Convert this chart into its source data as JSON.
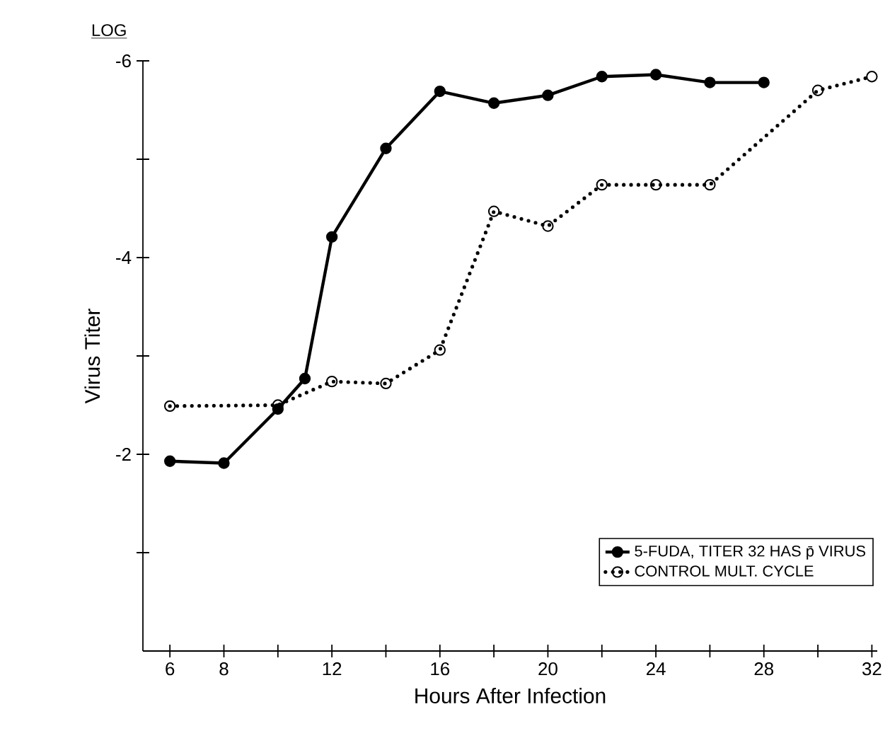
{
  "chart_data": {
    "type": "line",
    "xlabel": "Hours After Infection",
    "ylabel": "Virus Titer",
    "annotations": [
      "LOG"
    ],
    "x": [
      6,
      8,
      10,
      11,
      12,
      14,
      16,
      18,
      20,
      22,
      24,
      26,
      28
    ],
    "series": [
      {
        "name": "5-FUDA, TITER 32 HAS p̄ VIRUS",
        "color": "#000000",
        "line_style": "solid",
        "marker": "circle",
        "values": [
          -1.93,
          -1.91,
          -2.46,
          -2.77,
          -4.21,
          -5.11,
          -5.69,
          -5.57,
          -5.65,
          -5.84,
          -5.86,
          -5.78,
          -5.78
        ]
      },
      {
        "name": "CONTROL MULT. CYCLE",
        "color": "#000000",
        "line_style": "dotted",
        "marker": "circle",
        "x": [
          6,
          10,
          12,
          14,
          16,
          18,
          20,
          22,
          24,
          26,
          30,
          32
        ],
        "values": [
          -2.49,
          -2.5,
          -2.74,
          -2.72,
          -3.06,
          -4.47,
          -4.32,
          -4.74,
          -4.74,
          -4.74,
          -5.7,
          -5.84
        ]
      }
    ],
    "xlim": [
      5,
      32.2
    ],
    "xticks": [
      6,
      8,
      {
        "value": 10,
        "label": null
      },
      12,
      {
        "value": 14,
        "label": null
      },
      16,
      {
        "value": 18,
        "label": null
      },
      20,
      {
        "value": 22,
        "label": null
      },
      24,
      {
        "value": 26,
        "label": null
      },
      28,
      {
        "value": 30,
        "label": null
      },
      32
    ],
    "ylim": [
      0,
      -6
    ],
    "yticks": [
      {
        "value": -1,
        "label": null
      },
      -2,
      {
        "value": -3,
        "label": null
      },
      -4,
      {
        "value": -5,
        "label": null
      },
      -6
    ],
    "grid": false,
    "legend": "bottom right"
  }
}
